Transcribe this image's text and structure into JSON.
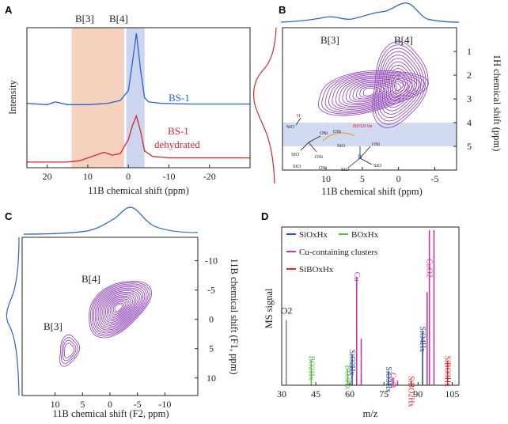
{
  "figure": {
    "panels": [
      "A",
      "B",
      "C",
      "D"
    ]
  },
  "chart_data": [
    {
      "panel": "A",
      "type": "line",
      "xlabel": "11B chemical shift (ppm)",
      "ylabel": "Intensity",
      "xlim": [
        25,
        -30
      ],
      "xticks": [
        20,
        10,
        0,
        -10,
        -20
      ],
      "region_labels": [
        "B[3]",
        "B[4]"
      ],
      "highlight_ranges": [
        {
          "name": "B[3]",
          "from": 14,
          "to": 1,
          "color": "#f5c9b3"
        },
        {
          "name": "B[4]",
          "from": 0.5,
          "to": -4,
          "color": "#c9d3ee"
        }
      ],
      "series": [
        {
          "name": "BS-1",
          "label": "BS-1",
          "color": "#2a62c9",
          "x": [
            25,
            20,
            18,
            15,
            10,
            5,
            2,
            0,
            -1,
            -2,
            -3,
            -4,
            -5,
            -8,
            -15,
            -25,
            -30
          ],
          "y": [
            0.46,
            0.45,
            0.47,
            0.45,
            0.45,
            0.46,
            0.48,
            0.55,
            0.75,
            0.96,
            0.7,
            0.5,
            0.47,
            0.46,
            0.455,
            0.455,
            0.455
          ]
        },
        {
          "name": "BS-1 dehydrated",
          "label": "BS-1",
          "label2": "dehydrated",
          "color": "#d6272e",
          "x": [
            25,
            20,
            15,
            12,
            8,
            6,
            4,
            2,
            0,
            -1,
            -2,
            -3,
            -4,
            -6,
            -10,
            -20,
            -30
          ],
          "y": [
            0.04,
            0.04,
            0.04,
            0.05,
            0.09,
            0.11,
            0.09,
            0.1,
            0.2,
            0.3,
            0.37,
            0.26,
            0.12,
            0.08,
            0.07,
            0.07,
            0.07
          ]
        }
      ]
    },
    {
      "panel": "B",
      "type": "heatmap",
      "xlabel": "11B chemical shift (ppm)",
      "ylabel": "1H chemical shift (ppm)",
      "xlim": [
        16,
        -8
      ],
      "ylim": [
        0,
        6
      ],
      "xticks": [
        10,
        5,
        0,
        -5
      ],
      "yticks": [
        1,
        2,
        3,
        4,
        5
      ],
      "region_labels": [
        "B[3]",
        "B[4]"
      ],
      "highlight_band": {
        "from": 4,
        "to": 5,
        "color": "#c9d3ee"
      },
      "inset_labels": [
        "SiO",
        "OSi",
        "SiO",
        "OSi",
        "SiO",
        "OSi",
        "SiO",
        "H",
        "B",
        "SiO",
        "B(H2O)n",
        "OSi",
        "OSi",
        "SiO"
      ]
    },
    {
      "panel": "C",
      "type": "heatmap",
      "xlabel": "11B chemical shift (F2, ppm)",
      "ylabel": "11B chemical shift (F1, ppm)",
      "xlim": [
        16,
        -16
      ],
      "ylim": [
        -14,
        13
      ],
      "xticks": [
        10,
        5,
        0,
        -5,
        -10
      ],
      "yticks": [
        -10,
        -5,
        0,
        5,
        10
      ],
      "region_labels": [
        "B[4]",
        "B[3]"
      ]
    },
    {
      "panel": "D",
      "type": "bar",
      "xlabel": "m/z",
      "ylabel": "MS signal",
      "xlim": [
        30,
        108
      ],
      "xticks": [
        30,
        45,
        60,
        75,
        90,
        105
      ],
      "legend": [
        {
          "name": "SiOxHx",
          "color": "#2b4fa0"
        },
        {
          "name": "BOxHx",
          "color": "#5fb84a"
        },
        {
          "name": "Cu-containing clusters",
          "color": "#c4389b"
        },
        {
          "name": "SiBOxHx",
          "color": "#d6272e"
        }
      ],
      "peaks": [
        {
          "mz": 32,
          "value": 0.42,
          "group": "O2",
          "color": "#888888",
          "label": "O2"
        },
        {
          "mz": 43,
          "value": 0.16,
          "group": "BOxHx",
          "color": "#5fb84a",
          "label": "BO2Hx"
        },
        {
          "mz": 59,
          "value": 0.1,
          "group": "BOxHx",
          "color": "#5fb84a",
          "label": "BO3Hx"
        },
        {
          "mz": 61,
          "value": 0.2,
          "group": "SiOxHx",
          "color": "#2b4fa0",
          "label": "SiO2Hx"
        },
        {
          "mz": 63,
          "value": 0.7,
          "group": "Cu",
          "color": "#c4389b",
          "label": "Cu"
        },
        {
          "mz": 65,
          "value": 0.3,
          "group": "Cu",
          "color": "#c4389b",
          "label": ""
        },
        {
          "mz": 77,
          "value": 0.09,
          "group": "SiOxHx",
          "color": "#2b4fa0",
          "label": "SiO3Hx"
        },
        {
          "mz": 79,
          "value": 0.05,
          "group": "Cu",
          "color": "#c4389b",
          "label": "CuO"
        },
        {
          "mz": 81,
          "value": 0.03,
          "group": "Cu",
          "color": "#c4389b",
          "label": ""
        },
        {
          "mz": 87,
          "value": 0.03,
          "group": "SiBOxHx",
          "color": "#d6272e",
          "label": "SiBO2Hx"
        },
        {
          "mz": 92,
          "value": 0.35,
          "group": "SiOxHx",
          "color": "#2b4fa0",
          "label": "SiO4Hx"
        },
        {
          "mz": 94,
          "value": 0.6,
          "group": "Cu",
          "color": "#c4389b",
          "label": ""
        },
        {
          "mz": 95,
          "value": 1.0,
          "group": "Cu",
          "color": "#c4389b",
          "label": "CuO2"
        },
        {
          "mz": 97,
          "value": 1.0,
          "group": "Cu",
          "color": "#c4389b",
          "label": ""
        },
        {
          "mz": 103,
          "value": 0.16,
          "group": "SiBOxHx",
          "color": "#d6272e",
          "label": "SiBO3Hx"
        }
      ]
    }
  ]
}
